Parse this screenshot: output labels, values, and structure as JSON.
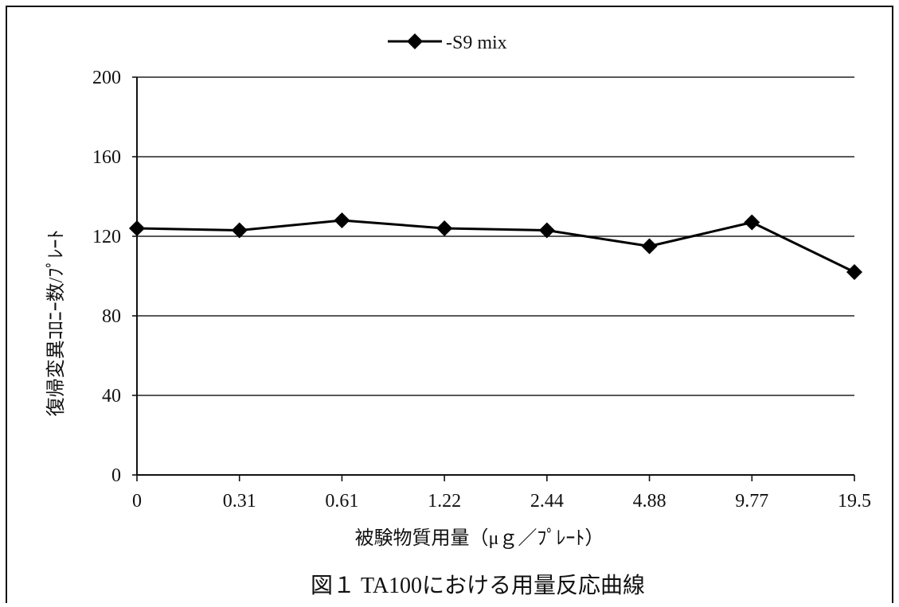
{
  "chart_data": {
    "type": "line",
    "legend_position": "top-center",
    "grid": true,
    "categories": [
      "0",
      "0.31",
      "0.61",
      "1.22",
      "2.44",
      "4.88",
      "9.77",
      "19.5"
    ],
    "series": [
      {
        "name": "-S9 mix",
        "marker": "diamond",
        "color": "#000000",
        "values": [
          124,
          123,
          128,
          124,
          123,
          115,
          127,
          102
        ]
      }
    ],
    "ylim": [
      0,
      200
    ],
    "yticks": [
      0,
      40,
      80,
      120,
      160,
      200
    ],
    "xlabel": "被験物質用量（μｇ／ﾌﾟﾚｰﾄ）",
    "ylabel": "復帰変異ｺﾛﾆｰ数/ﾌﾟﾚｰﾄ",
    "caption": "図１ TA100における用量反応曲線"
  }
}
